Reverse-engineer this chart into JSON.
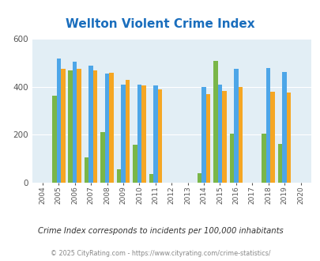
{
  "title": "Wellton Violent Crime Index",
  "title_color": "#1a6ebd",
  "years": [
    2004,
    2005,
    2006,
    2007,
    2008,
    2009,
    2010,
    2011,
    2012,
    2013,
    2014,
    2015,
    2016,
    2017,
    2018,
    2019,
    2020
  ],
  "data_years": [
    2005,
    2006,
    2007,
    2008,
    2009,
    2010,
    2011,
    2014,
    2015,
    2016,
    2018,
    2019
  ],
  "wellton": [
    365,
    470,
    105,
    210,
    55,
    160,
    38,
    40,
    510,
    205,
    205,
    162
  ],
  "arizona": [
    520,
    505,
    490,
    455,
    410,
    410,
    408,
    400,
    410,
    475,
    478,
    462
  ],
  "national": [
    475,
    475,
    470,
    460,
    430,
    405,
    390,
    370,
    385,
    400,
    380,
    378
  ],
  "wellton_color": "#7ab648",
  "arizona_color": "#4da6e8",
  "national_color": "#f5a623",
  "plot_bg": "#e2eef5",
  "ylim": [
    0,
    600
  ],
  "yticks": [
    0,
    200,
    400,
    600
  ],
  "subtitle": "Crime Index corresponds to incidents per 100,000 inhabitants",
  "copyright": "© 2025 CityRating.com - https://www.cityrating.com/crime-statistics/",
  "subtitle_color": "#333333",
  "copyright_color": "#888888",
  "bar_width": 0.27
}
